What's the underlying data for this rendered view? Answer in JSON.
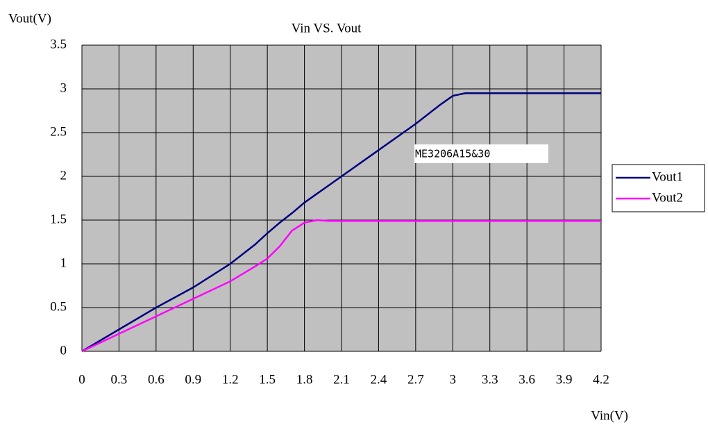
{
  "chart_data": {
    "type": "line",
    "title": "Vin VS. Vout",
    "x_label": "Vin(V)",
    "y_label": "Vout(V)",
    "annotation": "ME3206A15&30",
    "x": [
      0,
      0.3,
      0.6,
      0.9,
      1.2,
      1.4,
      1.5,
      1.6,
      1.7,
      1.8,
      1.9,
      2.0,
      2.1,
      2.4,
      2.7,
      2.9,
      3.0,
      3.1,
      4.2
    ],
    "series": [
      {
        "name": "Vout1",
        "color": "#000080",
        "values": [
          0,
          0.25,
          0.5,
          0.73,
          1.0,
          1.22,
          1.35,
          1.47,
          1.58,
          1.7,
          1.8,
          1.9,
          2.0,
          2.3,
          2.6,
          2.82,
          2.92,
          2.95,
          2.95
        ]
      },
      {
        "name": "Vout2",
        "color": "#ff00ff",
        "values": [
          0,
          0.2,
          0.4,
          0.6,
          0.8,
          0.97,
          1.06,
          1.2,
          1.38,
          1.47,
          1.5,
          1.49,
          1.49,
          1.49,
          1.49,
          1.49,
          1.49,
          1.49,
          1.49
        ]
      }
    ],
    "xlim": [
      0,
      4.2
    ],
    "xticks": [
      0,
      0.3,
      0.6,
      0.9,
      1.2,
      1.5,
      1.8,
      2.1,
      2.4,
      2.7,
      3,
      3.3,
      3.6,
      3.9,
      4.2
    ],
    "ylim": [
      0,
      3.5
    ],
    "yticks": [
      0,
      0.5,
      1,
      1.5,
      2,
      2.5,
      3,
      3.5
    ],
    "grid": true,
    "legend": "right",
    "plot_background": "#c0c0c0"
  }
}
